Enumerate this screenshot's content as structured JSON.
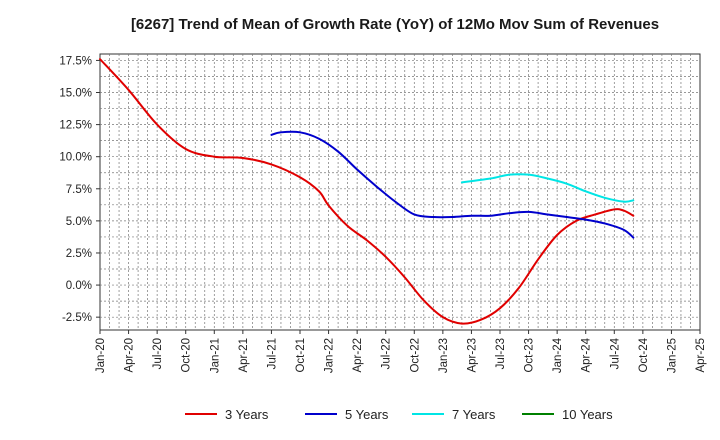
{
  "chart_data": {
    "type": "line",
    "title": "[6267]  Trend of Mean of Growth Rate (YoY) of 12Mo Mov Sum of Revenues",
    "xlabel": "",
    "ylabel": "",
    "ylim": [
      -3.5,
      18.0
    ],
    "y_ticks": [
      {
        "value": 17.5,
        "label": "17.5%"
      },
      {
        "value": 15.0,
        "label": "15.0%"
      },
      {
        "value": 12.5,
        "label": "12.5%"
      },
      {
        "value": 10.0,
        "label": "10.0%"
      },
      {
        "value": 7.5,
        "label": "7.5%"
      },
      {
        "value": 5.0,
        "label": "5.0%"
      },
      {
        "value": 2.5,
        "label": "2.5%"
      },
      {
        "value": 0.0,
        "label": "0.0%"
      },
      {
        "value": -2.5,
        "label": "-2.5%"
      }
    ],
    "x_ticks": [
      "Jan-20",
      "Apr-20",
      "Jul-20",
      "Oct-20",
      "Jan-21",
      "Apr-21",
      "Jul-21",
      "Oct-21",
      "Jan-22",
      "Apr-22",
      "Jul-22",
      "Oct-22",
      "Jan-23",
      "Apr-23",
      "Jul-23",
      "Oct-23",
      "Jan-24",
      "Apr-24",
      "Jul-24",
      "Oct-24",
      "Jan-25",
      "Apr-25"
    ],
    "grid": true,
    "legend_position": "bottom",
    "series": [
      {
        "name": "3 Years",
        "color": "#e00000",
        "points": [
          [
            0,
            17.6
          ],
          [
            3,
            15.2
          ],
          [
            6,
            12.5
          ],
          [
            9,
            10.6
          ],
          [
            12,
            10.0
          ],
          [
            15,
            9.9
          ],
          [
            18,
            9.4
          ],
          [
            21,
            8.4
          ],
          [
            23,
            7.3
          ],
          [
            24,
            6.2
          ],
          [
            26,
            4.6
          ],
          [
            28,
            3.5
          ],
          [
            30,
            2.2
          ],
          [
            32,
            0.6
          ],
          [
            34,
            -1.2
          ],
          [
            36,
            -2.5
          ],
          [
            38,
            -3.0
          ],
          [
            40,
            -2.7
          ],
          [
            42,
            -1.8
          ],
          [
            44,
            -0.2
          ],
          [
            46,
            2.0
          ],
          [
            48,
            3.9
          ],
          [
            50,
            5.0
          ],
          [
            52,
            5.5
          ],
          [
            54,
            5.9
          ],
          [
            55,
            5.8
          ],
          [
            56,
            5.4
          ]
        ]
      },
      {
        "name": "5 Years",
        "color": "#0000cc",
        "points": [
          [
            18,
            11.7
          ],
          [
            19,
            11.9
          ],
          [
            21,
            11.9
          ],
          [
            23,
            11.4
          ],
          [
            25,
            10.4
          ],
          [
            27,
            9.0
          ],
          [
            29,
            7.7
          ],
          [
            31,
            6.5
          ],
          [
            33,
            5.5
          ],
          [
            35,
            5.3
          ],
          [
            37,
            5.3
          ],
          [
            39,
            5.4
          ],
          [
            41,
            5.4
          ],
          [
            43,
            5.6
          ],
          [
            45,
            5.7
          ],
          [
            47,
            5.5
          ],
          [
            49,
            5.3
          ],
          [
            51,
            5.1
          ],
          [
            53,
            4.8
          ],
          [
            55,
            4.3
          ],
          [
            56,
            3.7
          ]
        ]
      },
      {
        "name": "7 Years",
        "color": "#00e5e5",
        "points": [
          [
            38,
            8.0
          ],
          [
            41,
            8.3
          ],
          [
            43,
            8.6
          ],
          [
            45,
            8.6
          ],
          [
            47,
            8.3
          ],
          [
            49,
            7.9
          ],
          [
            51,
            7.3
          ],
          [
            53,
            6.8
          ],
          [
            55,
            6.5
          ],
          [
            56,
            6.6
          ]
        ]
      },
      {
        "name": "10 Years",
        "color": "#008000",
        "points": []
      }
    ]
  }
}
